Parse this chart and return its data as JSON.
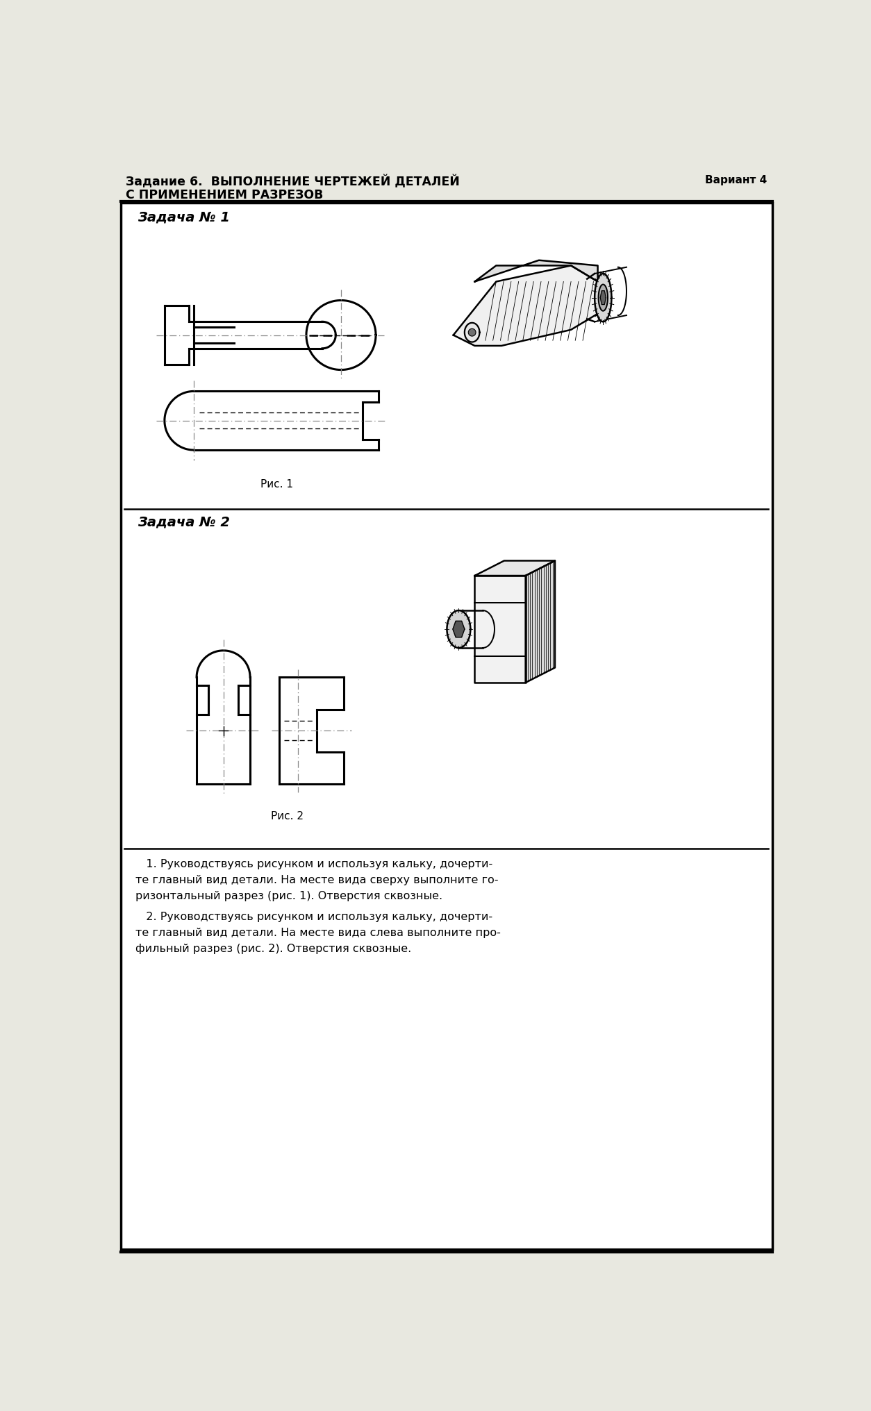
{
  "title_line1": "Задание 6.  ВЫПОЛНЕНИЕ ЧЕРТЕЖЕЙ ДЕТАЛЕЙ",
  "title_line2": "С ПРИМЕНЕНИЕМ РАЗРЕЗОВ",
  "variant": "Вариант 4",
  "zadacha1": "Задача № 1",
  "zadacha2": "Задача № 2",
  "ris1": "Рис. 1",
  "ris2": "Рис. 2",
  "text1": "   1. Руководствуясь рисунком и используя кальку, дочерти-\nте главный вид детали. На месте вида сверху выполните го-\nризонтальный разрез (рис. 1). Отверстия сквозные.",
  "text2": "   2. Руководствуясь рисунком и используя кальку, дочерти-\nте главный вид детали. На месте вида слева выполните про-\nфильный разрез (рис. 2). Отверстия сквозные.",
  "bg_color": "#e8e8e0",
  "box_bg": "#ffffff",
  "lw_main": 2.2,
  "lw_thin": 1.2,
  "lw_hidden": 1.0
}
